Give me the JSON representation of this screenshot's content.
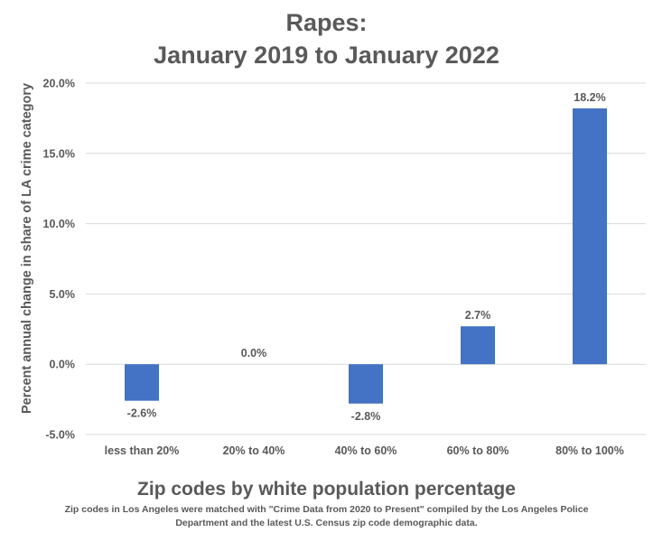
{
  "chart_data": {
    "type": "bar",
    "title_lines": [
      "Rapes:",
      "January 2019 to January 2022"
    ],
    "xlabel": "Zip codes by white population percentage",
    "ylabel": "Percent annual change in share of LA crime category",
    "categories": [
      "less than 20%",
      "20% to 40%",
      "40% to 60%",
      "60% to 80%",
      "80% to 100%"
    ],
    "values": [
      -2.6,
      0.0,
      -2.8,
      2.7,
      18.2
    ],
    "data_labels": [
      "-2.6%",
      "0.0%",
      "-2.8%",
      "2.7%",
      "18.2%"
    ],
    "ylim": [
      -5,
      20
    ],
    "yticks": [
      -5,
      0,
      5,
      10,
      15,
      20
    ],
    "ytick_labels": [
      "-5.0%",
      "0.0%",
      "5.0%",
      "10.0%",
      "15.0%",
      "20.0%"
    ],
    "grid": true,
    "bar_color": "#4472C4",
    "grid_color": "#D9D9D9",
    "note_lines": [
      "Zip codes in Los Angeles were matched with \"Crime Data from 2020 to Present\" compiled by the Los Angeles Police",
      "Department and the latest U.S. Census zip code demographic data."
    ]
  }
}
